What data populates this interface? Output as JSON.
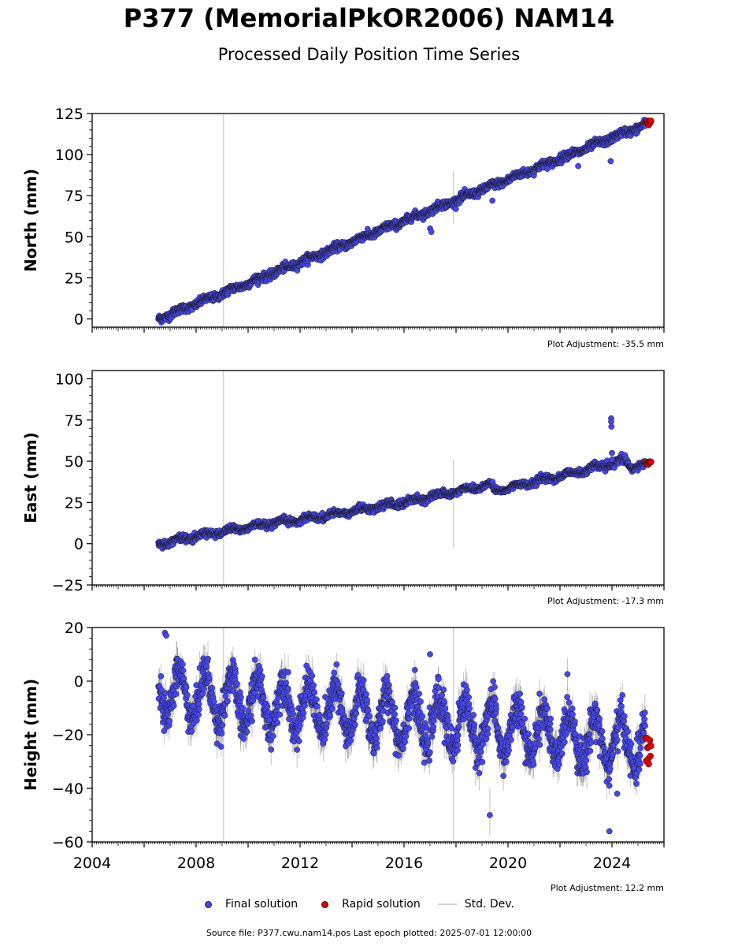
{
  "title": "P377 (MemorialPkOR2006) NAM14",
  "subtitle": "Processed Daily Position Time Series",
  "legend": {
    "final": "Final solution",
    "rapid": "Rapid solution",
    "stddev": "Std. Dev."
  },
  "source_line": "Source file: P377.cwu.nam14.pos  Last epoch plotted: 2025-07-01 12:00:00",
  "colors": {
    "final": "#4646ee",
    "rapid": "#e00000",
    "stddev": "#d3d3d3",
    "stddev_dark": "#555555"
  },
  "chart_data": [
    {
      "type": "scatter",
      "ylabel": "North (mm)",
      "adjustment": "Plot Adjustment: -35.5 mm",
      "xlim": [
        2004,
        2026
      ],
      "ylim": [
        -5,
        125
      ],
      "yticks": [
        0,
        25,
        50,
        75,
        100,
        125
      ],
      "ytick_labels": [
        "0",
        "25",
        "50",
        "75",
        "100",
        "125"
      ],
      "trend": {
        "start": [
          2006.55,
          0
        ],
        "end": [
          2025.4,
          119
        ]
      },
      "seasonal_amplitude": 0.8,
      "noise_sd": 1.2,
      "outliers": [
        [
          2017.0,
          55
        ],
        [
          2017.05,
          53
        ],
        [
          2023.95,
          96
        ],
        [
          2019.4,
          72
        ],
        [
          2022.7,
          93
        ]
      ],
      "tall_std_lines": [
        [
          2009.05,
          -5,
          125
        ],
        [
          2017.9,
          58,
          90
        ]
      ],
      "rapid": {
        "x": [
          2025.3,
          2025.5
        ],
        "values": [
          118,
          121
        ]
      }
    },
    {
      "type": "scatter",
      "ylabel": "East (mm)",
      "adjustment": "Plot Adjustment: -17.3 mm",
      "xlim": [
        2004,
        2026
      ],
      "ylim": [
        -25,
        105
      ],
      "yticks": [
        -25,
        0,
        25,
        50,
        75,
        100
      ],
      "ytick_labels": [
        "−25",
        "0",
        "25",
        "50",
        "75",
        "100"
      ],
      "trend_points": [
        [
          2006.55,
          0
        ],
        [
          2008.5,
          6
        ],
        [
          2010,
          10
        ],
        [
          2013,
          17
        ],
        [
          2016,
          25
        ],
        [
          2019.3,
          36
        ],
        [
          2019.5,
          32
        ],
        [
          2023.9,
          48
        ],
        [
          2024.5,
          51
        ],
        [
          2024.7,
          46
        ],
        [
          2025.4,
          49
        ]
      ],
      "seasonal_amplitude": 1.2,
      "noise_sd": 1.0,
      "outliers": [
        [
          2023.97,
          76
        ],
        [
          2023.97,
          74
        ],
        [
          2023.98,
          71
        ],
        [
          2024.0,
          55
        ],
        [
          2024.0,
          51
        ]
      ],
      "tall_std_lines": [
        [
          2009.05,
          -25,
          105
        ],
        [
          2017.9,
          -2,
          51
        ]
      ],
      "rapid": {
        "x": [
          2025.3,
          2025.5
        ],
        "values": [
          48,
          50
        ]
      }
    },
    {
      "type": "scatter",
      "ylabel": "Height (mm)",
      "adjustment": "Plot Adjustment: 12.2 mm",
      "xlim": [
        2004,
        2026
      ],
      "ylim": [
        -60,
        20
      ],
      "yticks": [
        -60,
        -40,
        -20,
        0,
        20
      ],
      "ytick_labels": [
        "−60",
        "−40",
        "−20",
        "0",
        "20"
      ],
      "xticks": [
        2004,
        2008,
        2012,
        2016,
        2020,
        2024
      ],
      "xtick_labels": [
        "2004",
        "2008",
        "2012",
        "2016",
        "2020",
        "2024"
      ],
      "trend": {
        "start": [
          2006.55,
          -4
        ],
        "end": [
          2025.4,
          -24
        ]
      },
      "seasonal_amplitude": 9,
      "noise_sd": 3.5,
      "outliers": [
        [
          2006.8,
          18
        ],
        [
          2006.85,
          17
        ],
        [
          2019.3,
          -50
        ],
        [
          2023.9,
          -56
        ],
        [
          2023.9,
          -39
        ],
        [
          2017.0,
          10
        ],
        [
          2024.2,
          -42
        ]
      ],
      "tall_std_lines": [
        [
          2009.05,
          -60,
          20
        ],
        [
          2017.9,
          -60,
          20
        ],
        [
          2019.3,
          -58,
          -40
        ]
      ],
      "rapid": {
        "x": [
          2025.3,
          2025.5
        ],
        "values": [
          -31,
          -21
        ]
      }
    }
  ]
}
